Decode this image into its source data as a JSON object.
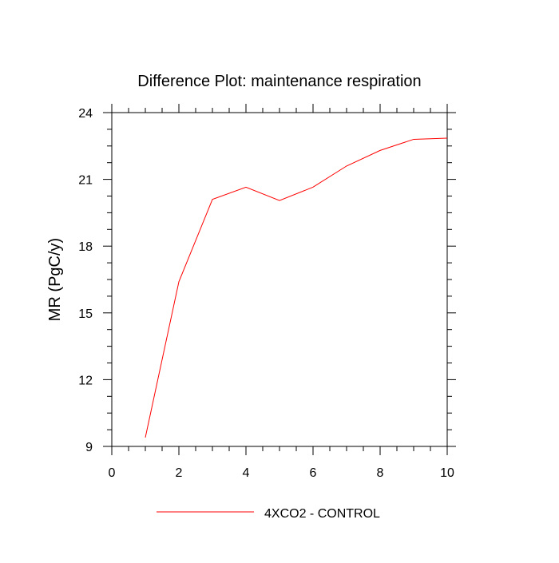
{
  "chart_data": {
    "type": "line",
    "title": "Difference Plot: maintenance respiration",
    "xlabel": "",
    "ylabel": "MR  (PgC/y)",
    "xlim": [
      0,
      10
    ],
    "ylim": [
      9,
      24
    ],
    "xticks": [
      0,
      2,
      4,
      6,
      8,
      10
    ],
    "xtick_labels": [
      "0",
      "2",
      "4",
      "6",
      "8",
      "10"
    ],
    "yticks": [
      9,
      12,
      15,
      18,
      21,
      24
    ],
    "ytick_labels": [
      "9",
      "12",
      "15",
      "18",
      "21",
      "24"
    ],
    "grid": false,
    "legend_position": "bottom-center",
    "series": [
      {
        "name": "4XCO2 - CONTROL",
        "color": "#ff0000",
        "x": [
          1,
          2,
          3,
          4,
          5,
          6,
          7,
          8,
          9,
          10
        ],
        "y": [
          9.4,
          16.4,
          20.1,
          20.65,
          20.05,
          20.65,
          21.6,
          22.3,
          22.8,
          22.85
        ]
      }
    ]
  }
}
